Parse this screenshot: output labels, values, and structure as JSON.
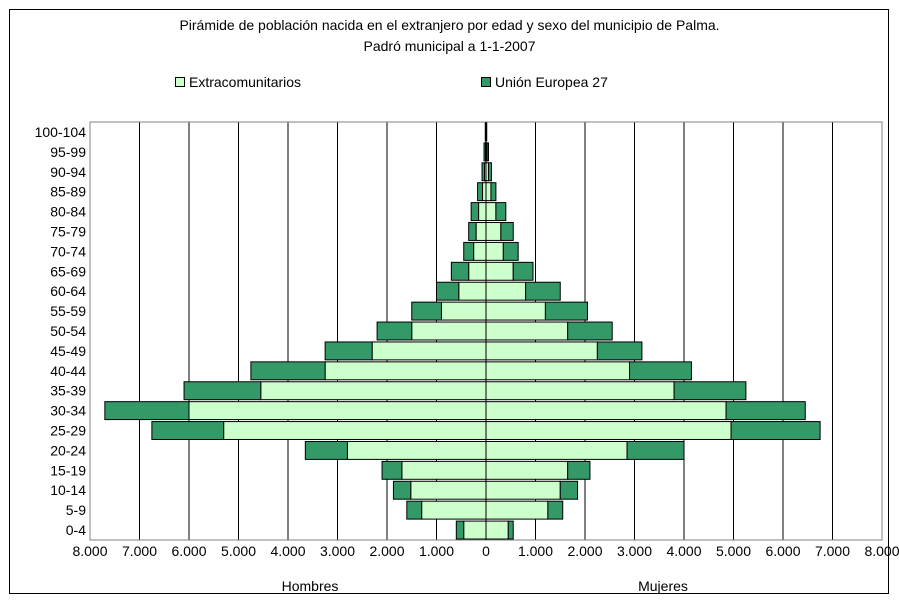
{
  "chart_data": {
    "type": "bar",
    "title": "Pirámide de población nacida en el extranjero por edad y sexo del municipio de Palma.",
    "subtitle": "Padró municipal a 1-1-2007",
    "categories": [
      "0-4",
      "5-9",
      "10-14",
      "15-19",
      "20-24",
      "25-29",
      "30-34",
      "35-39",
      "40-44",
      "45-49",
      "50-54",
      "55-59",
      "60-64",
      "65-69",
      "70-74",
      "75-79",
      "80-84",
      "85-89",
      "90-94",
      "95-99",
      "100-104"
    ],
    "x_ticks": [
      "8.000",
      "7.000",
      "6.000",
      "5.000",
      "4.000",
      "3.000",
      "2.000",
      "1.000",
      "0",
      "1.000",
      "2.000",
      "3.000",
      "4.000",
      "5.000",
      "6.000",
      "7.000",
      "8.000"
    ],
    "xlim": [
      -8000,
      8000
    ],
    "legend_position": "top",
    "grid": true,
    "xlabel_left": "Hombres",
    "xlabel_right": "Mujeres",
    "series": [
      {
        "name": "Extracomunitarios",
        "color": "#ccffcc",
        "hombres": [
          450,
          1300,
          1520,
          1700,
          2800,
          5300,
          6000,
          4550,
          3250,
          2300,
          1500,
          900,
          550,
          350,
          250,
          200,
          150,
          70,
          30,
          10,
          5
        ],
        "mujeres": [
          450,
          1250,
          1500,
          1650,
          2850,
          4950,
          4850,
          3800,
          2900,
          2250,
          1650,
          1200,
          800,
          550,
          350,
          300,
          200,
          100,
          50,
          20,
          5
        ]
      },
      {
        "name": "Unión Europea 27",
        "color": "#339966",
        "hombres": [
          150,
          300,
          350,
          400,
          850,
          1450,
          1700,
          1550,
          1500,
          950,
          700,
          600,
          450,
          350,
          200,
          150,
          150,
          100,
          50,
          30,
          10
        ],
        "mujeres": [
          100,
          300,
          350,
          450,
          1150,
          1800,
          1600,
          1450,
          1250,
          900,
          900,
          850,
          700,
          400,
          300,
          250,
          200,
          100,
          60,
          30,
          10
        ]
      }
    ]
  }
}
